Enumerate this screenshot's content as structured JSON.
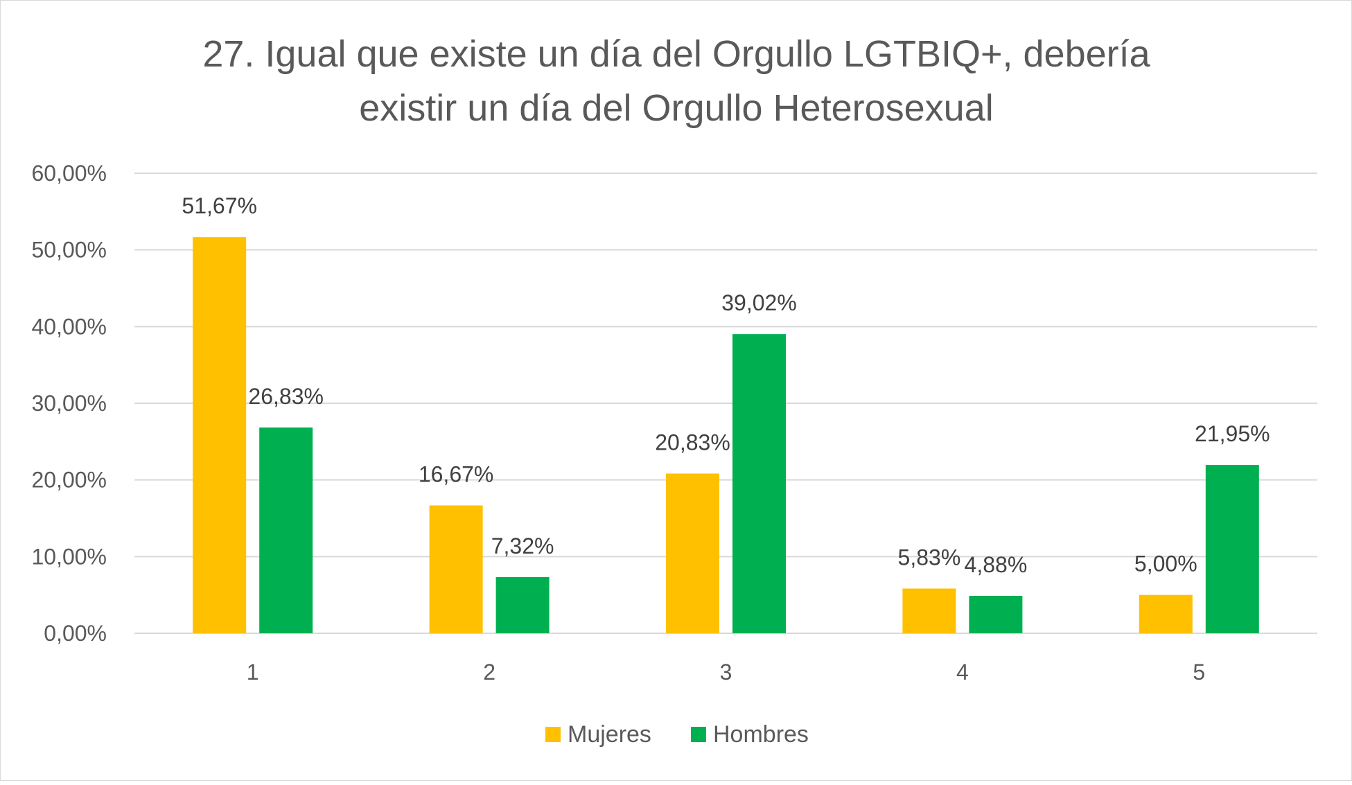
{
  "chart_data": {
    "type": "bar",
    "title": [
      "27. Igual que existe un día del Orgullo LGTBIQ+, debería",
      "existir un día del Orgullo Heterosexual"
    ],
    "xlabel": "",
    "ylabel": "",
    "categories": [
      "1",
      "2",
      "3",
      "4",
      "5"
    ],
    "series": [
      {
        "name": "Mujeres",
        "color": "#FFC000",
        "values": [
          51.67,
          16.67,
          20.83,
          5.83,
          5.0
        ],
        "labels": [
          "51,67%",
          "16,67%",
          "20,83%",
          "5,83%",
          "5,00%"
        ]
      },
      {
        "name": "Hombres",
        "color": "#00B050",
        "values": [
          26.83,
          7.32,
          39.02,
          4.88,
          21.95
        ],
        "labels": [
          "26,83%",
          "7,32%",
          "39,02%",
          "4,88%",
          "21,95%"
        ]
      }
    ],
    "ylim": [
      0,
      60
    ],
    "yticks": [
      0,
      10,
      20,
      30,
      40,
      50,
      60
    ],
    "ytick_labels": [
      "0,00%",
      "10,00%",
      "20,00%",
      "30,00%",
      "40,00%",
      "50,00%",
      "60,00%"
    ],
    "grid": true,
    "legend_position": "bottom"
  }
}
